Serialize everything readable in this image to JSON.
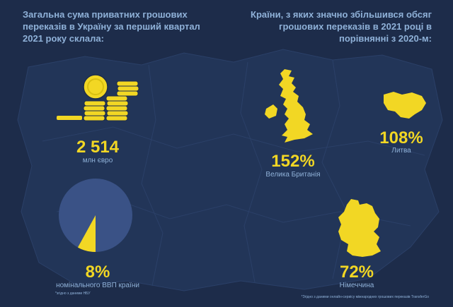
{
  "left_panel": {
    "heading": "Загальна сума приватних грошових переказів в Україну за перший квартал 2021 року склала:",
    "total_value": "2 514",
    "total_unit": "млн євро",
    "gdp_share": "8%",
    "gdp_share_fraction": 0.08,
    "gdp_label": "номінального ВВП країни",
    "gdp_source": "*згідно з даними НБУ"
  },
  "right_panel": {
    "heading": "Країни, з яких значно збільшився обсяг грошових переказів в 2021 році в порівнянні з 2020-м:",
    "countries": [
      {
        "value": "152%",
        "name": "Велика Британія"
      },
      {
        "value": "108%",
        "name": "Литва"
      },
      {
        "value": "72%",
        "name": "Німеччина"
      }
    ],
    "footnote": "*Згідно з даними онлайн-сервісу міжнародних грошових переказів TransferGo"
  },
  "colors": {
    "background": "#1d2c4a",
    "accent": "#f2d724",
    "text": "#8fb1d8",
    "pie_fill": "#3a5286"
  }
}
